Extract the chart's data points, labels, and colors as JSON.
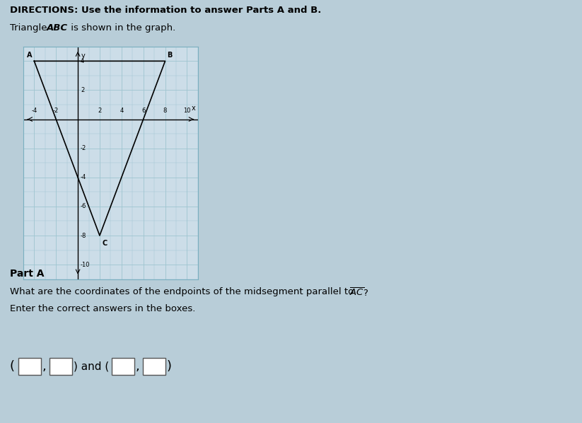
{
  "title_text": "DIRECTIONS: Use the information to answer Parts A and B.",
  "subtitle_text": "Triangle ",
  "subtitle_abc": "ABC",
  "subtitle_rest": " is shown in the graph.",
  "part_a_label": "Part A",
  "question_text": "What are the coordinates of the endpoints of the midsegment parallel to ",
  "enter_text": "Enter the correct answers in the boxes.",
  "page_bg": "#b8cdd8",
  "graph_bg": "#ccdde8",
  "grid_color_major": "#7aafc0",
  "grid_color_minor": "#9ec4d0",
  "triangle_A": [
    -4,
    4
  ],
  "triangle_B": [
    8,
    4
  ],
  "triangle_C": [
    2,
    -8
  ],
  "graph_xlim": [
    -5,
    11
  ],
  "graph_ylim": [
    -11,
    5
  ],
  "x_ticks_labeled": [
    -4,
    -2,
    2,
    4,
    6,
    8,
    10
  ],
  "y_ticks_labeled": [
    2,
    -2,
    -4,
    -6,
    -8,
    -10
  ],
  "tick_fontsize": 6,
  "box_color": "white",
  "box_edge": "#333333"
}
